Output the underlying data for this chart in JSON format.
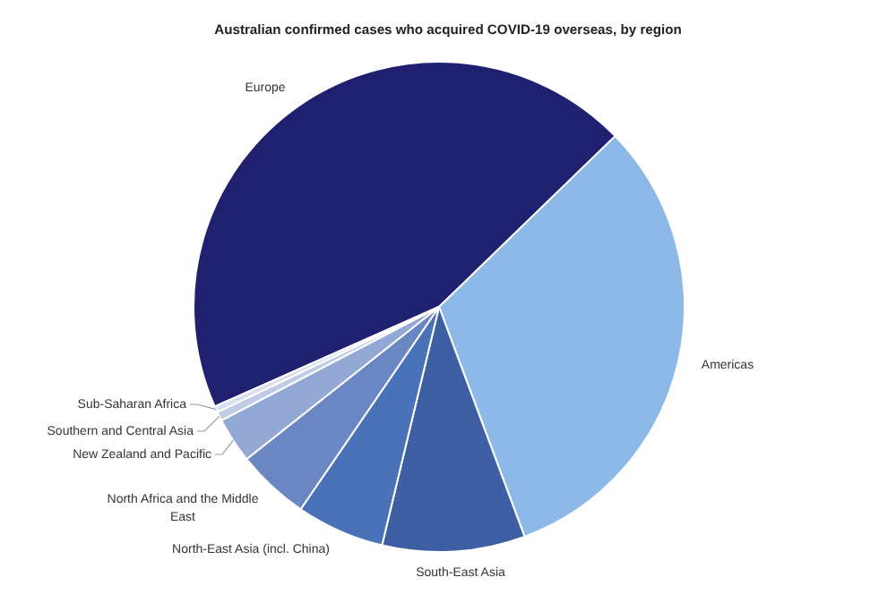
{
  "chart_data": {
    "type": "pie",
    "title": "Australian confirmed cases who acquired COVID-19 overseas, by region",
    "categories": [
      "Europe",
      "Americas",
      "South-East Asia",
      "North-East Asia (incl. China)",
      "North Africa and the Middle East",
      "New Zealand and Pacific",
      "Southern and Central Asia",
      "Sub-Saharan Africa"
    ],
    "values": [
      44.4,
      31.6,
      9.4,
      5.8,
      4.8,
      3.0,
      0.6,
      0.4
    ],
    "colors": [
      "#1f2170",
      "#8cb9e8",
      "#3f5fa5",
      "#4a72b8",
      "#6a87c4",
      "#94a8d6",
      "#c0cbe6",
      "#d8def0"
    ],
    "legend": false
  }
}
